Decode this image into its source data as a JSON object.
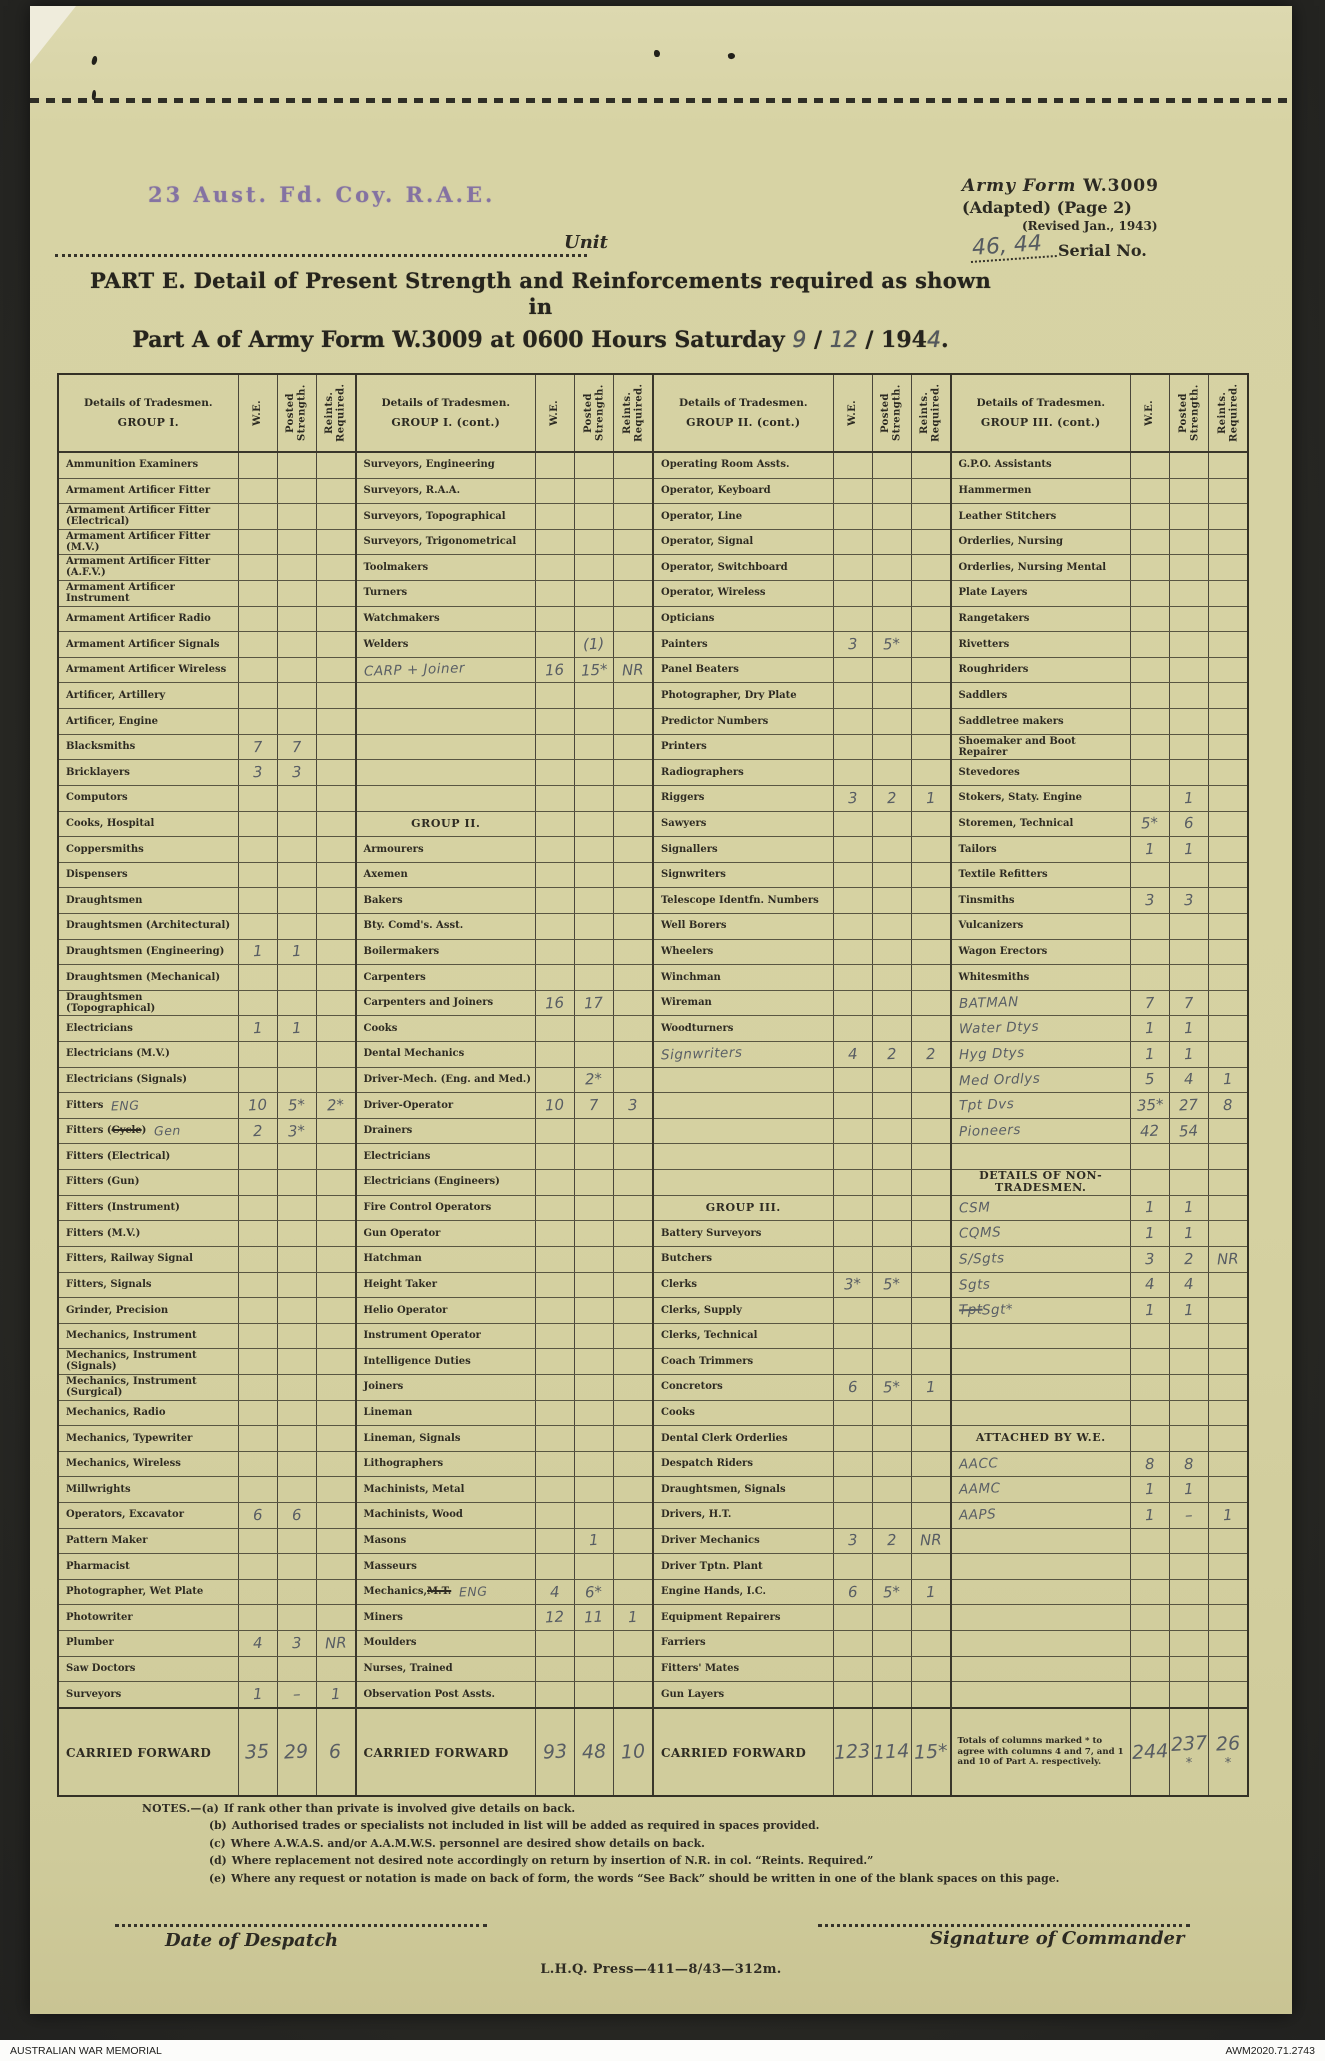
{
  "header": {
    "stamp": "23 Aust. Fd. Coy. R.A.E.",
    "unit_label": "Unit",
    "form_line1_italic": "Army Form",
    "form_line1_number": " W.3009",
    "form_line2": "(Adapted)  (Page 2)",
    "form_line3": "(Revised Jan., 1943)",
    "serial_value": "46, 44",
    "serial_label": "Serial No."
  },
  "title": {
    "line1": "PART E.  Detail of Present Strength and Reinforcements required as shown in",
    "line2_printed": "Part A of Army Form W.3009 at 0600 Hours Saturday ",
    "date_day": "9",
    "sep1": " / ",
    "date_month": "12",
    "sep2": " / ",
    "year_printed": "194",
    "year_digit": "4",
    "line2_end": "."
  },
  "table": {
    "col_headers": {
      "we": "W.E.",
      "posted": "Posted Strength.",
      "reints": "Reints. Required."
    },
    "groups": [
      {
        "details_label": "Details of Tradesmen.",
        "group_label": "GROUP I.",
        "rows": [
          [
            "Ammunition Examiners"
          ],
          [
            "Armament Artificer Fitter"
          ],
          [
            "Armament Artificer Fitter (Electrical)"
          ],
          [
            "Armament Artificer Fitter (M.V.)"
          ],
          [
            "Armament Artificer Fitter (A.F.V.)"
          ],
          [
            "Armament Artificer Instrument"
          ],
          [
            "Armament Artificer Radio"
          ],
          [
            "Armament Artificer Signals"
          ],
          [
            "Armament Artificer Wireless"
          ],
          [
            "Artificer, Artillery"
          ],
          [
            "Artificer, Engine"
          ],
          [
            "Blacksmiths",
            "7",
            "7"
          ],
          [
            "Bricklayers",
            "3",
            "3"
          ],
          [
            "Computors"
          ],
          [
            "Cooks, Hospital"
          ],
          [
            "Coppersmiths"
          ],
          [
            "Dispensers"
          ],
          [
            "Draughtsmen"
          ],
          [
            "Draughtsmen (Architectural)"
          ],
          [
            "Draughtsmen (Engineering)",
            "1",
            "1"
          ],
          [
            "Draughtsmen (Mechanical)"
          ],
          [
            "Draughtsmen (Topographical)"
          ],
          [
            "Electricians",
            "1",
            "1"
          ],
          [
            "Electricians (M.V.)"
          ],
          [
            "Electricians (Signals)"
          ],
          {
            "label": "Fitters",
            "annot": "ENG",
            "we": "10",
            "posted": "5*",
            "reints": "2*"
          },
          {
            "pre": "Fitters (",
            "struck": "Cycle",
            "post": ")",
            "annot": "Gen",
            "we": "2",
            "posted": "3*"
          },
          [
            "Fitters (Electrical)"
          ],
          [
            "Fitters (Gun)"
          ],
          [
            "Fitters (Instrument)"
          ],
          [
            "Fitters (M.V.)"
          ],
          [
            "Fitters, Railway Signal"
          ],
          [
            "Fitters, Signals"
          ],
          [
            "Grinder, Precision"
          ],
          [
            "Mechanics, Instrument"
          ],
          [
            "Mechanics, Instrument (Signals)"
          ],
          [
            "Mechanics, Instrument (Surgical)"
          ],
          [
            "Mechanics, Radio"
          ],
          [
            "Mechanics, Typewriter"
          ],
          [
            "Mechanics, Wireless"
          ],
          [
            "Millwrights"
          ],
          [
            "Operators, Excavator",
            "6",
            "6"
          ],
          [
            "Pattern  Maker"
          ],
          [
            "Pharmacist"
          ],
          [
            "Photographer, Wet Plate"
          ],
          [
            "Photowriter"
          ],
          [
            "Plumber",
            "4",
            "3",
            "NR"
          ],
          [
            "Saw Doctors"
          ],
          [
            "Surveyors",
            "1",
            "–",
            "1"
          ]
        ],
        "carried_forward": {
          "label": "CARRIED FORWARD",
          "we": "35",
          "posted": "29",
          "reints": "6"
        }
      },
      {
        "details_label": "Details of Tradesmen.",
        "group_label": "GROUP I. (cont.)",
        "rows": [
          [
            "Surveyors, Engineering"
          ],
          [
            "Surveyors, R.A.A."
          ],
          [
            "Surveyors, Topographical"
          ],
          [
            "Surveyors, Trigonometrical"
          ],
          [
            "Toolmakers"
          ],
          [
            "Turners"
          ],
          [
            "Watchmakers"
          ],
          [
            "Welders",
            "",
            "(1)",
            ""
          ],
          {
            "hw": true,
            "label": "CARP + Joiner",
            "we": "16",
            "posted": "15*",
            "reints": "NR"
          },
          [],
          [],
          [],
          [],
          [],
          {
            "head": true,
            "label": "GROUP II."
          },
          [
            "Armourers"
          ],
          [
            "Axemen"
          ],
          [
            "Bakers"
          ],
          [
            "Bty. Comd's. Asst."
          ],
          [
            "Boilermakers"
          ],
          [
            "Carpenters"
          ],
          [
            "Carpenters and Joiners",
            "16",
            "17"
          ],
          [
            "Cooks"
          ],
          [
            "Dental Mechanics"
          ],
          [
            "Driver-Mech. (Eng. and Med.)",
            "",
            "2*"
          ],
          [
            "Driver-Operator",
            "10",
            "7",
            "3"
          ],
          [
            "Drainers"
          ],
          [
            "Electricians"
          ],
          [
            "Electricians (Engineers)"
          ],
          [
            "Fire Control Operators"
          ],
          [
            "Gun Operator"
          ],
          [
            "Hatchman"
          ],
          [
            "Height Taker"
          ],
          [
            "Helio Operator"
          ],
          [
            "Instrument Operator"
          ],
          [
            "Intelligence Duties"
          ],
          [
            "Joiners"
          ],
          [
            "Lineman"
          ],
          [
            "Lineman, Signals"
          ],
          [
            "Lithographers"
          ],
          [
            "Machinists, Metal"
          ],
          [
            "Machinists, Wood"
          ],
          [
            "Masons",
            "",
            "1"
          ],
          [
            "Masseurs"
          ],
          {
            "pre": "Mechanics, ",
            "struck": "M.T.",
            "annot": "ENG",
            "we": "4",
            "posted": "6*"
          },
          [
            "Miners",
            "12",
            "11",
            "1"
          ],
          [
            "Moulders"
          ],
          [
            "Nurses, Trained"
          ],
          [
            "Observation Post Assts."
          ]
        ],
        "carried_forward": {
          "label": "CARRIED FORWARD",
          "we": "93",
          "posted": "48",
          "reints": "10"
        }
      },
      {
        "details_label": "Details of Tradesmen.",
        "group_label": "GROUP II. (cont.)",
        "rows": [
          [
            "Operating Room Assts."
          ],
          [
            "Operator, Keyboard"
          ],
          [
            "Operator, Line"
          ],
          [
            "Operator, Signal"
          ],
          [
            "Operator, Switchboard"
          ],
          [
            "Operator, Wireless"
          ],
          [
            "Opticians"
          ],
          [
            "Painters",
            "3",
            "5*"
          ],
          [
            "Panel Beaters"
          ],
          [
            "Photographer, Dry Plate"
          ],
          [
            "Predictor Numbers"
          ],
          [
            "Printers"
          ],
          [
            "Radiographers"
          ],
          [
            "Riggers",
            "3",
            "2",
            "1"
          ],
          [
            "Sawyers"
          ],
          [
            "Signallers"
          ],
          [
            "Signwriters"
          ],
          [
            "Telescope Identfn. Numbers"
          ],
          [
            "Well Borers"
          ],
          [
            "Wheelers"
          ],
          [
            "Winchman"
          ],
          [
            "Wireman"
          ],
          [
            "Woodturners"
          ],
          {
            "hw": true,
            "label": "Signwriters",
            "we": "4",
            "posted": "2",
            "reints": "2"
          },
          [],
          [],
          [],
          [],
          [],
          {
            "head": true,
            "label": "GROUP III."
          },
          [
            "Battery Surveyors"
          ],
          [
            "Butchers"
          ],
          [
            "Clerks",
            "3*",
            "5*"
          ],
          [
            "Clerks, Supply"
          ],
          [
            "Clerks, Technical"
          ],
          [
            "Coach Trimmers"
          ],
          [
            "Concretors",
            "6",
            "5*",
            "1"
          ],
          [
            "Cooks"
          ],
          [
            "Dental Clerk Orderlies"
          ],
          [
            "Despatch Riders"
          ],
          [
            "Draughtsmen, Signals"
          ],
          [
            "Drivers, H.T."
          ],
          [
            "Driver Mechanics",
            "3",
            "2",
            "NR"
          ],
          [
            "Driver Tptn. Plant"
          ],
          [
            "Engine Hands, I.C.",
            "6",
            "5*",
            "1"
          ],
          [
            "Equipment Repairers"
          ],
          [
            "Farriers"
          ],
          [
            "Fitters' Mates"
          ],
          [
            "Gun Layers"
          ]
        ],
        "carried_forward": {
          "label": "CARRIED FORWARD",
          "we": "123",
          "posted": "114",
          "reints": "15*"
        }
      },
      {
        "details_label": "Details of Tradesmen.",
        "group_label": "GROUP III. (cont.)",
        "rows": [
          [
            "G.P.O. Assistants"
          ],
          [
            "Hammermen"
          ],
          [
            "Leather Stitchers"
          ],
          [
            "Orderlies, Nursing"
          ],
          [
            "Orderlies, Nursing Mental"
          ],
          [
            "Plate Layers"
          ],
          [
            "Rangetakers"
          ],
          [
            "Rivetters"
          ],
          [
            "Roughriders"
          ],
          [
            "Saddlers"
          ],
          [
            "Saddletree makers"
          ],
          [
            "Shoemaker and Boot Repairer"
          ],
          [
            "Stevedores"
          ],
          [
            "Stokers, Staty. Engine",
            "",
            "1"
          ],
          [
            "Storemen, Technical",
            "5*",
            "6"
          ],
          [
            "Tailors",
            "1",
            "1"
          ],
          [
            "Textile Refitters"
          ],
          [
            "Tinsmiths",
            "3",
            "3"
          ],
          [
            "Vulcanizers"
          ],
          [
            "Wagon Erectors"
          ],
          [
            "Whitesmiths"
          ],
          {
            "hw": true,
            "label": "BATMAN",
            "we": "7",
            "posted": "7"
          },
          {
            "hw": true,
            "label": "Water Dtys",
            "we": "1",
            "posted": "1"
          },
          {
            "hw": true,
            "label": "Hyg Dtys",
            "we": "1",
            "posted": "1"
          },
          {
            "hw": true,
            "label": "Med Ordlys",
            "we": "5",
            "posted": "4",
            "reints": "1"
          },
          {
            "hw": true,
            "label": "Tpt Dvs",
            "we": "35*",
            "posted": "27",
            "reints": "8"
          },
          {
            "hw": true,
            "label": "Pioneers",
            "we": "42",
            "posted": "54"
          },
          [],
          {
            "head": true,
            "label": "DETAILS OF NON-TRADESMEN."
          },
          {
            "hw": true,
            "label": "CSM",
            "we": "1",
            "posted": "1"
          },
          {
            "hw": true,
            "label": "CQMS",
            "we": "1",
            "posted": "1"
          },
          {
            "hw": true,
            "label": "S/Sgts",
            "we": "3",
            "posted": "2",
            "reints": "NR"
          },
          {
            "hw": true,
            "label": "Sgts",
            "we": "4",
            "posted": "4"
          },
          {
            "hw": true,
            "struck": "Tpt",
            "post": " Sgt*",
            "we": "1",
            "posted": "1"
          },
          [],
          [],
          [],
          [],
          {
            "head": true,
            "label": "ATTACHED BY W.E."
          },
          {
            "hw": true,
            "label": "AACC",
            "we": "8",
            "posted": "8"
          },
          {
            "hw": true,
            "label": "AAMC",
            "we": "1",
            "posted": "1"
          },
          {
            "hw": true,
            "label": "AAPS",
            "we": "1",
            "posted": "–",
            "reints": "1"
          },
          [],
          [],
          [],
          [],
          [],
          [],
          []
        ],
        "carried_forward": {
          "note": "Totals of columns marked * to agree with columns 4 and 7, and 1 and 10 of Part A. respectively.",
          "we": "244",
          "posted": "237",
          "reints": "26",
          "we_mark": "",
          "posted_mark": "*",
          "reints_mark": "*"
        }
      }
    ]
  },
  "notes": {
    "heading": "NOTES.—",
    "items": [
      {
        "tag": "(a)",
        "text": "If rank other than private is involved give details on back."
      },
      {
        "tag": "(b)",
        "text": "Authorised trades or specialists not included in list will be added as required in spaces provided."
      },
      {
        "tag": "(c)",
        "text": "Where A.W.A.S. and/or A.A.M.W.S. personnel are desired show details on back."
      },
      {
        "tag": "(d)",
        "text": "Where replacement not desired note accordingly on return by insertion of N.R. in col. “Reints. Required.”"
      },
      {
        "tag": "(e)",
        "text": "Where any request or notation is made on back of form, the words “See Back” should be written in one of the blank spaces on this page."
      }
    ]
  },
  "footer": {
    "date_label": "Date of Despatch",
    "signature_label": "Signature of Commander",
    "press_line": "L.H.Q.  Press—411—8/43—312m."
  },
  "awm_bar": {
    "left": "AUSTRALIAN WAR MEMORIAL",
    "right": "AWM2020.71.2743"
  }
}
